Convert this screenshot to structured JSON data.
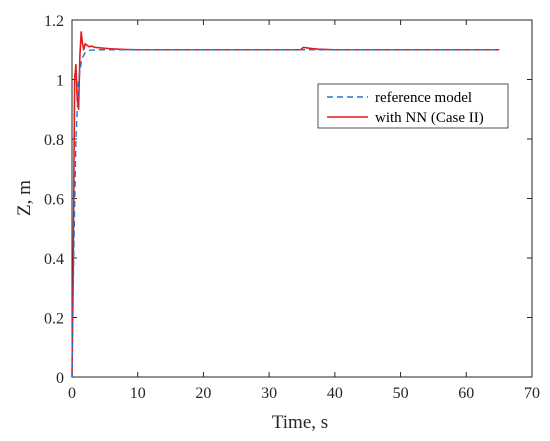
{
  "chart_data": {
    "type": "line",
    "xlabel": "Time, s",
    "ylabel": "Z, m",
    "xlim": [
      0,
      70
    ],
    "ylim": [
      0,
      1.2
    ],
    "xticks": [
      0,
      10,
      20,
      30,
      40,
      50,
      60,
      70
    ],
    "yticks": [
      0,
      0.2,
      0.4,
      0.6,
      0.8,
      1,
      1.2
    ],
    "xtick_labels": [
      "0",
      "10",
      "20",
      "30",
      "40",
      "50",
      "60",
      "70"
    ],
    "ytick_labels": [
      "0",
      "0.2",
      "0.4",
      "0.6",
      "0.8",
      "1",
      "1.2"
    ],
    "grid": false,
    "legend_position": "top-right",
    "series": [
      {
        "name": "reference model",
        "color": "#1f77d4",
        "style": "dashed",
        "x": [
          0,
          0.3,
          0.6,
          1.0,
          1.5,
          2.0,
          2.5,
          3.0,
          4.0,
          5.0,
          6.0,
          8.0,
          10,
          20,
          30,
          35,
          40,
          50,
          60,
          65
        ],
        "y": [
          0,
          0.45,
          0.8,
          1.0,
          1.07,
          1.09,
          1.097,
          1.099,
          1.1,
          1.1,
          1.1,
          1.1,
          1.1,
          1.1,
          1.1,
          1.1,
          1.1,
          1.1,
          1.1,
          1.1
        ]
      },
      {
        "name": "with NN (Case II)",
        "color": "#e8191c",
        "style": "solid",
        "x": [
          0,
          0.2,
          0.4,
          0.6,
          0.8,
          1.0,
          1.2,
          1.4,
          1.6,
          1.8,
          2.0,
          2.3,
          2.6,
          3.0,
          3.5,
          4.0,
          5.0,
          6.0,
          7.0,
          8.0,
          10,
          15,
          20,
          25,
          30,
          34.8,
          35.2,
          35.8,
          36.5,
          37.5,
          38.5,
          40,
          45,
          50,
          55,
          60,
          65
        ],
        "y": [
          0,
          0.4,
          1.0,
          1.05,
          0.93,
          0.9,
          1.08,
          1.16,
          1.12,
          1.1,
          1.12,
          1.115,
          1.11,
          1.112,
          1.108,
          1.107,
          1.105,
          1.103,
          1.102,
          1.101,
          1.1,
          1.1,
          1.1,
          1.1,
          1.1,
          1.1,
          1.108,
          1.106,
          1.104,
          1.102,
          1.101,
          1.1,
          1.1,
          1.1,
          1.1,
          1.1,
          1.1
        ]
      }
    ]
  }
}
